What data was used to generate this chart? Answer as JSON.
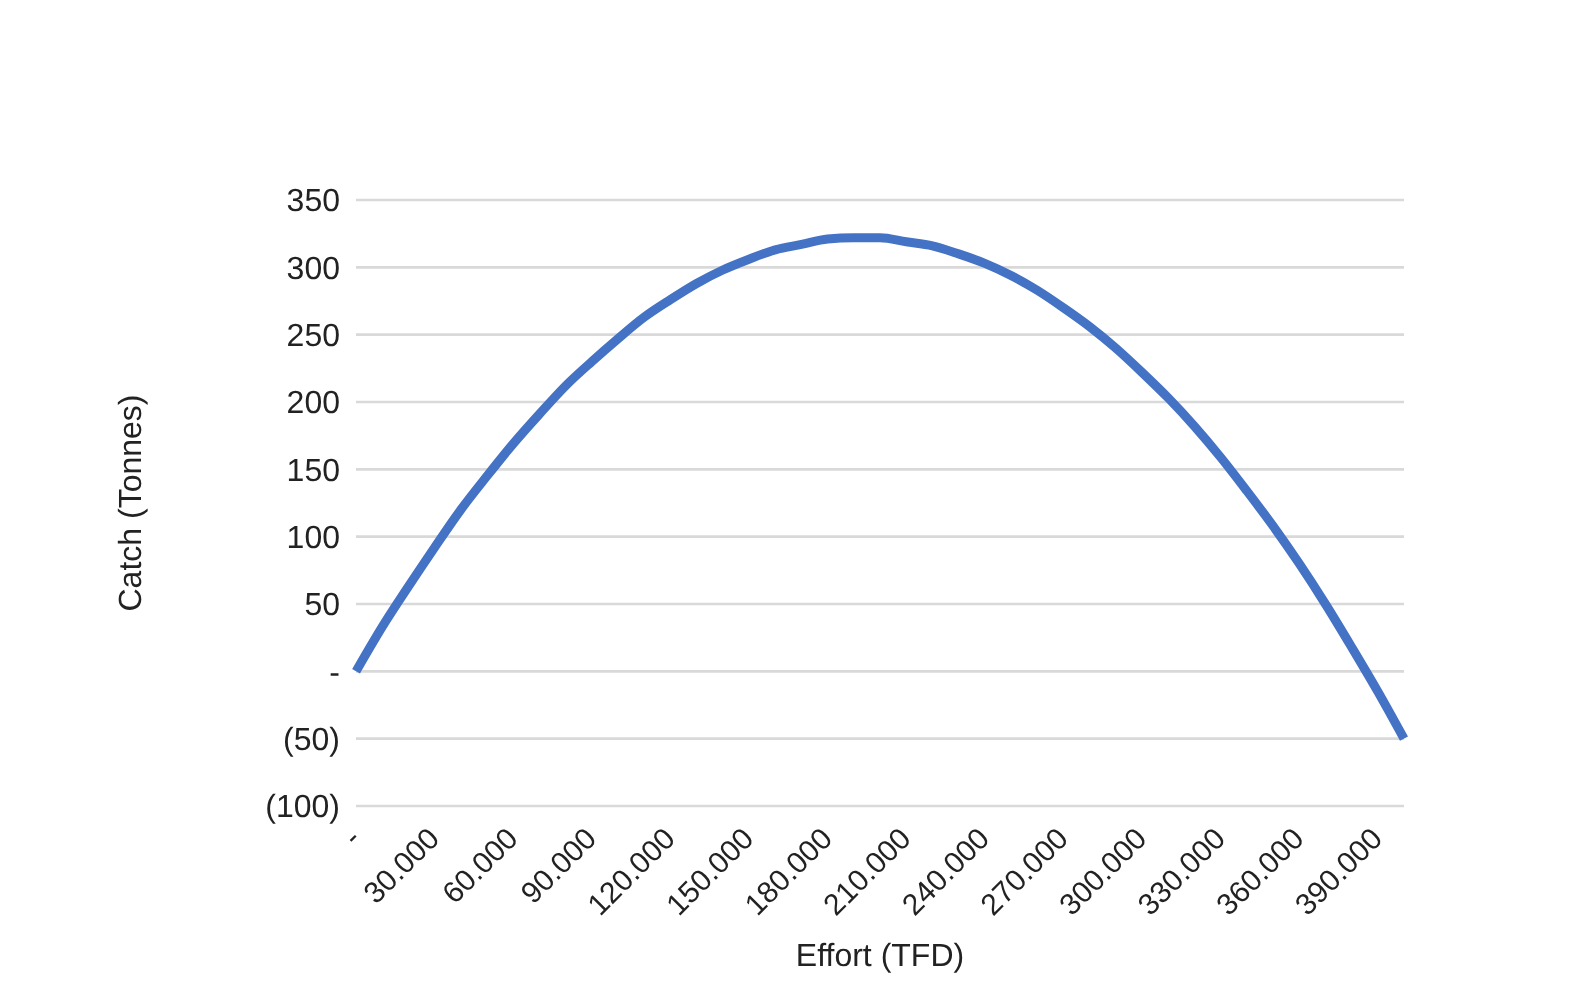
{
  "chart_data": {
    "type": "line",
    "xlabel": "Effort (TFD)",
    "ylabel": "Catch (Tonnes)",
    "categories": [
      "-",
      null,
      null,
      "30.000",
      null,
      null,
      "60.000",
      null,
      null,
      "90.000",
      null,
      null,
      "120.000",
      null,
      null,
      "150.000",
      null,
      null,
      "180.000",
      null,
      null,
      "210.000",
      null,
      null,
      "240.000",
      null,
      null,
      "270.000",
      null,
      null,
      "300.000",
      null,
      null,
      "330.000",
      null,
      null,
      "360.000",
      null,
      null,
      "390.000",
      null
    ],
    "series": [
      {
        "color": "#4472c4",
        "values": [
          0,
          33,
          63,
          92,
          120,
          145,
          169,
          191,
          212,
          230,
          247,
          263,
          276,
          288,
          298,
          306,
          313,
          317,
          321,
          322,
          322,
          319,
          316,
          310,
          303,
          294,
          283,
          270,
          256,
          240,
          222,
          203,
          182,
          159,
          134,
          108,
          80,
          50,
          18,
          -15,
          -50
        ]
      }
    ],
    "ylim": [
      -100,
      350
    ],
    "yticks": [
      {
        "value": -100,
        "label": "(100)"
      },
      {
        "value": -50,
        "label": "(50)"
      },
      {
        "value": 0,
        "label": "-"
      },
      50,
      100,
      150,
      200,
      250,
      300,
      350
    ],
    "grid": "y",
    "legend": false,
    "marker": "none",
    "line_style": "solid"
  }
}
